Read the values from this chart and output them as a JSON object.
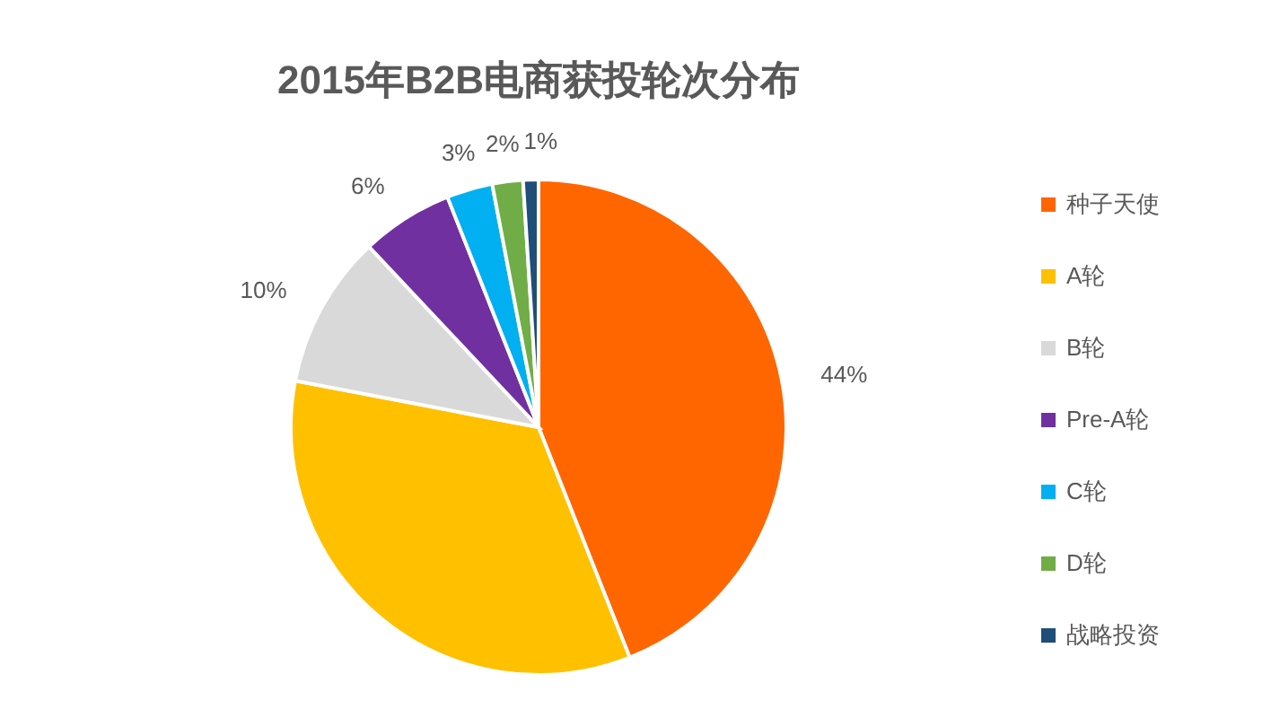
{
  "chart_data": {
    "type": "pie",
    "title": "2015年B2B电商获投轮次分布",
    "categories": [
      "种子天使",
      "A轮",
      "B轮",
      "Pre-A轮",
      "C轮",
      "D轮",
      "战略投资"
    ],
    "values": [
      44,
      34,
      10,
      6,
      3,
      2,
      1
    ],
    "value_labels": [
      "44%",
      null,
      "10%",
      "6%",
      "3%",
      "2%",
      "1%"
    ],
    "colors": [
      "#ff6600",
      "#ffc000",
      "#d9d9d9",
      "#7030a0",
      "#00b0f0",
      "#70ad47",
      "#1f4e79"
    ],
    "legend": "right"
  }
}
